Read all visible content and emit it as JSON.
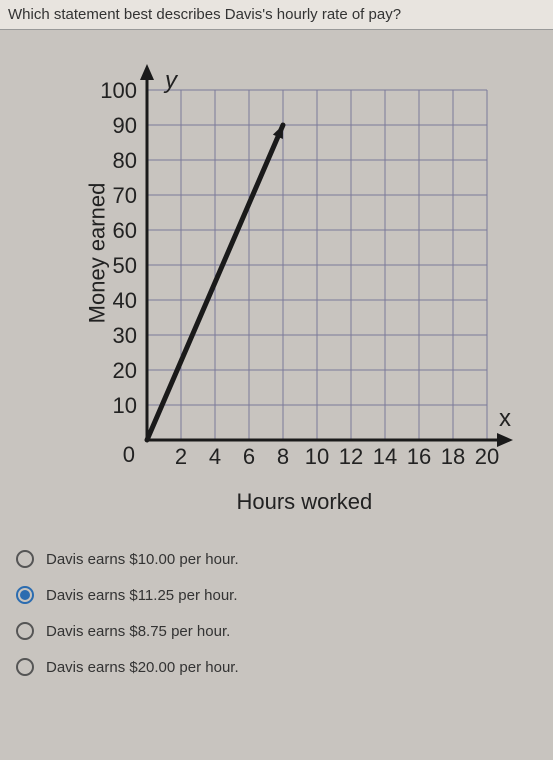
{
  "question": "Which statement best describes Davis's hourly rate of pay?",
  "chart": {
    "type": "line",
    "y_label": "Money earned",
    "x_label": "Hours worked",
    "y_axis_symbol": "y",
    "x_axis_symbol": "x",
    "xlim": [
      0,
      20
    ],
    "ylim": [
      0,
      100
    ],
    "y_ticks": [
      10,
      20,
      30,
      40,
      50,
      60,
      70,
      80,
      90,
      100
    ],
    "x_ticks": [
      2,
      4,
      6,
      8,
      10,
      12,
      14,
      16,
      18,
      20
    ],
    "y_tick_labels": [
      "10",
      "20",
      "30",
      "40",
      "50",
      "60",
      "70",
      "80",
      "90",
      "100"
    ],
    "x_tick_labels": [
      "2",
      "4",
      "6",
      "8",
      "10",
      "12",
      "14",
      "16",
      "18",
      "20"
    ],
    "origin_label": "0",
    "grid_color": "#7a7a9a",
    "axis_color": "#1a1a1a",
    "line_color": "#1a1a1a",
    "background_color": "#c8c4bf",
    "line_width": 5,
    "tick_fontsize": 22,
    "label_fontsize": 22,
    "line_points": [
      [
        0,
        0
      ],
      [
        8,
        90
      ]
    ],
    "has_arrow": true
  },
  "options": [
    {
      "label": "Davis earns $10.00 per hour.",
      "selected": false
    },
    {
      "label": "Davis earns $11.25 per hour.",
      "selected": true
    },
    {
      "label": "Davis earns $8.75 per hour.",
      "selected": false
    },
    {
      "label": "Davis earns $20.00 per hour.",
      "selected": false
    }
  ]
}
